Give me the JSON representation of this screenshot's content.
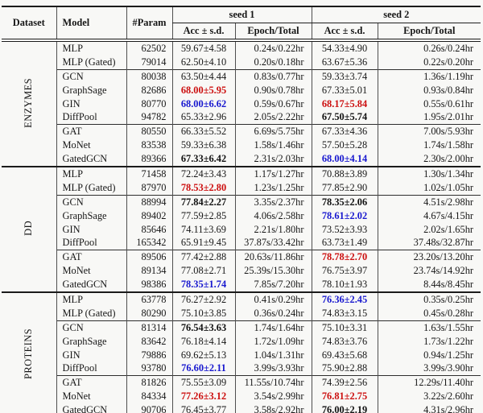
{
  "table": {
    "header": {
      "dataset": "Dataset",
      "model": "Model",
      "param": "#Param",
      "seed1": "seed 1",
      "seed2": "seed 2",
      "acc_sd": "Acc ± s.d.",
      "epoch_total": "Epoch/Total"
    },
    "highlight_colors": {
      "best": "#cc0f0f",
      "second_best": "#1818cf",
      "third_best": "#111111"
    },
    "groups": [
      {
        "dataset": "ENZYMES",
        "rows": [
          {
            "model": "MLP",
            "param": "62502",
            "seed1": {
              "acc": "59.67±4.58",
              "rank": "",
              "time": "0.24s/0.22hr"
            },
            "seed2": {
              "acc": "54.33±4.90",
              "rank": "",
              "time": "0.26s/0.24hr"
            }
          },
          {
            "model": "MLP (Gated)",
            "param": "79014",
            "seed1": {
              "acc": "62.50±4.10",
              "rank": "",
              "time": "0.20s/0.18hr"
            },
            "seed2": {
              "acc": "63.67±5.36",
              "rank": "",
              "time": "0.22s/0.20hr"
            }
          },
          {
            "model": "GCN",
            "param": "80038",
            "seed1": {
              "acc": "63.50±4.44",
              "rank": "",
              "time": "0.83s/0.77hr"
            },
            "seed2": {
              "acc": "59.33±3.74",
              "rank": "",
              "time": "1.36s/1.19hr"
            }
          },
          {
            "model": "GraphSage",
            "param": "82686",
            "seed1": {
              "acc": "68.00±5.95",
              "rank": "best",
              "time": "0.90s/0.78hr"
            },
            "seed2": {
              "acc": "67.33±5.01",
              "rank": "",
              "time": "0.93s/0.84hr"
            }
          },
          {
            "model": "GIN",
            "param": "80770",
            "seed1": {
              "acc": "68.00±6.62",
              "rank": "second",
              "time": "0.59s/0.67hr"
            },
            "seed2": {
              "acc": "68.17±5.84",
              "rank": "best",
              "time": "0.55s/0.61hr"
            }
          },
          {
            "model": "DiffPool",
            "param": "94782",
            "seed1": {
              "acc": "65.33±2.96",
              "rank": "",
              "time": "2.05s/2.22hr"
            },
            "seed2": {
              "acc": "67.50±5.74",
              "rank": "third",
              "time": "1.95s/2.01hr"
            }
          },
          {
            "model": "GAT",
            "param": "80550",
            "seed1": {
              "acc": "66.33±5.52",
              "rank": "",
              "time": "6.69s/5.75hr"
            },
            "seed2": {
              "acc": "67.33±4.36",
              "rank": "",
              "time": "7.00s/5.93hr"
            }
          },
          {
            "model": "MoNet",
            "param": "83538",
            "seed1": {
              "acc": "59.33±6.38",
              "rank": "",
              "time": "1.58s/1.46hr"
            },
            "seed2": {
              "acc": "57.50±5.28",
              "rank": "",
              "time": "1.74s/1.58hr"
            }
          },
          {
            "model": "GatedGCN",
            "param": "89366",
            "seed1": {
              "acc": "67.33±6.42",
              "rank": "third",
              "time": "2.31s/2.03hr"
            },
            "seed2": {
              "acc": "68.00±4.14",
              "rank": "second",
              "time": "2.30s/2.00hr"
            }
          }
        ]
      },
      {
        "dataset": "DD",
        "rows": [
          {
            "model": "MLP",
            "param": "71458",
            "seed1": {
              "acc": "72.24±3.43",
              "rank": "",
              "time": "1.17s/1.27hr"
            },
            "seed2": {
              "acc": "70.88±3.89",
              "rank": "",
              "time": "1.30s/1.34hr"
            }
          },
          {
            "model": "MLP (Gated)",
            "param": "87970",
            "seed1": {
              "acc": "78.53±2.80",
              "rank": "best",
              "time": "1.23s/1.25hr"
            },
            "seed2": {
              "acc": "77.85±2.90",
              "rank": "",
              "time": "1.02s/1.05hr"
            }
          },
          {
            "model": "GCN",
            "param": "88994",
            "seed1": {
              "acc": "77.84±2.27",
              "rank": "third",
              "time": "3.35s/2.37hr"
            },
            "seed2": {
              "acc": "78.35±2.06",
              "rank": "third",
              "time": "4.51s/2.98hr"
            }
          },
          {
            "model": "GraphSage",
            "param": "89402",
            "seed1": {
              "acc": "77.59±2.85",
              "rank": "",
              "time": "4.06s/2.58hr"
            },
            "seed2": {
              "acc": "78.61±2.02",
              "rank": "second",
              "time": "4.67s/4.15hr"
            }
          },
          {
            "model": "GIN",
            "param": "85646",
            "seed1": {
              "acc": "74.11±3.69",
              "rank": "",
              "time": "2.21s/1.80hr"
            },
            "seed2": {
              "acc": "73.52±3.93",
              "rank": "",
              "time": "2.02s/1.65hr"
            }
          },
          {
            "model": "DiffPool",
            "param": "165342",
            "seed1": {
              "acc": "65.91±9.45",
              "rank": "",
              "time": "37.87s/33.42hr"
            },
            "seed2": {
              "acc": "63.73±1.49",
              "rank": "",
              "time": "37.48s/32.87hr"
            }
          },
          {
            "model": "GAT",
            "param": "89506",
            "seed1": {
              "acc": "77.42±2.88",
              "rank": "",
              "time": "20.63s/11.86hr"
            },
            "seed2": {
              "acc": "78.78±2.70",
              "rank": "best",
              "time": "23.20s/13.20hr"
            }
          },
          {
            "model": "MoNet",
            "param": "89134",
            "seed1": {
              "acc": "77.08±2.71",
              "rank": "",
              "time": "25.39s/15.30hr"
            },
            "seed2": {
              "acc": "76.75±3.97",
              "rank": "",
              "time": "23.74s/14.92hr"
            }
          },
          {
            "model": "GatedGCN",
            "param": "98386",
            "seed1": {
              "acc": "78.35±1.74",
              "rank": "second",
              "time": "7.85s/7.20hr"
            },
            "seed2": {
              "acc": "78.10±1.93",
              "rank": "",
              "time": "8.44s/8.45hr"
            }
          }
        ]
      },
      {
        "dataset": "PROTEINS",
        "rows": [
          {
            "model": "MLP",
            "param": "63778",
            "seed1": {
              "acc": "76.27±2.92",
              "rank": "",
              "time": "0.41s/0.29hr"
            },
            "seed2": {
              "acc": "76.36±2.45",
              "rank": "second",
              "time": "0.35s/0.25hr"
            }
          },
          {
            "model": "MLP (Gated)",
            "param": "80290",
            "seed1": {
              "acc": "75.10±3.85",
              "rank": "",
              "time": "0.36s/0.24hr"
            },
            "seed2": {
              "acc": "74.83±3.15",
              "rank": "",
              "time": "0.45s/0.28hr"
            }
          },
          {
            "model": "GCN",
            "param": "81314",
            "seed1": {
              "acc": "76.54±3.63",
              "rank": "third",
              "time": "1.74s/1.64hr"
            },
            "seed2": {
              "acc": "75.10±3.31",
              "rank": "",
              "time": "1.63s/1.55hr"
            }
          },
          {
            "model": "GraphSage",
            "param": "83642",
            "seed1": {
              "acc": "76.18±4.14",
              "rank": "",
              "time": "1.72s/1.09hr"
            },
            "seed2": {
              "acc": "74.83±3.76",
              "rank": "",
              "time": "1.73s/1.22hr"
            }
          },
          {
            "model": "GIN",
            "param": "79886",
            "seed1": {
              "acc": "69.62±5.13",
              "rank": "",
              "time": "1.04s/1.31hr"
            },
            "seed2": {
              "acc": "69.43±5.68",
              "rank": "",
              "time": "0.94s/1.25hr"
            }
          },
          {
            "model": "DiffPool",
            "param": "93780",
            "seed1": {
              "acc": "76.60±2.11",
              "rank": "second",
              "time": "3.99s/3.93hr"
            },
            "seed2": {
              "acc": "75.90±2.88",
              "rank": "",
              "time": "3.99s/3.90hr"
            }
          },
          {
            "model": "GAT",
            "param": "81826",
            "seed1": {
              "acc": "75.55±3.09",
              "rank": "",
              "time": "11.55s/10.74hr"
            },
            "seed2": {
              "acc": "74.39±2.56",
              "rank": "",
              "time": "12.29s/11.40hr"
            }
          },
          {
            "model": "MoNet",
            "param": "84334",
            "seed1": {
              "acc": "77.26±3.12",
              "rank": "best",
              "time": "3.54s/2.99hr"
            },
            "seed2": {
              "acc": "76.81±2.75",
              "rank": "best",
              "time": "3.22s/2.60hr"
            }
          },
          {
            "model": "GatedGCN",
            "param": "90706",
            "seed1": {
              "acc": "76.45±3.77",
              "rank": "",
              "time": "3.58s/2.92hr"
            },
            "seed2": {
              "acc": "76.00±2.19",
              "rank": "third",
              "time": "4.31s/2.96hr"
            }
          }
        ]
      }
    ]
  }
}
